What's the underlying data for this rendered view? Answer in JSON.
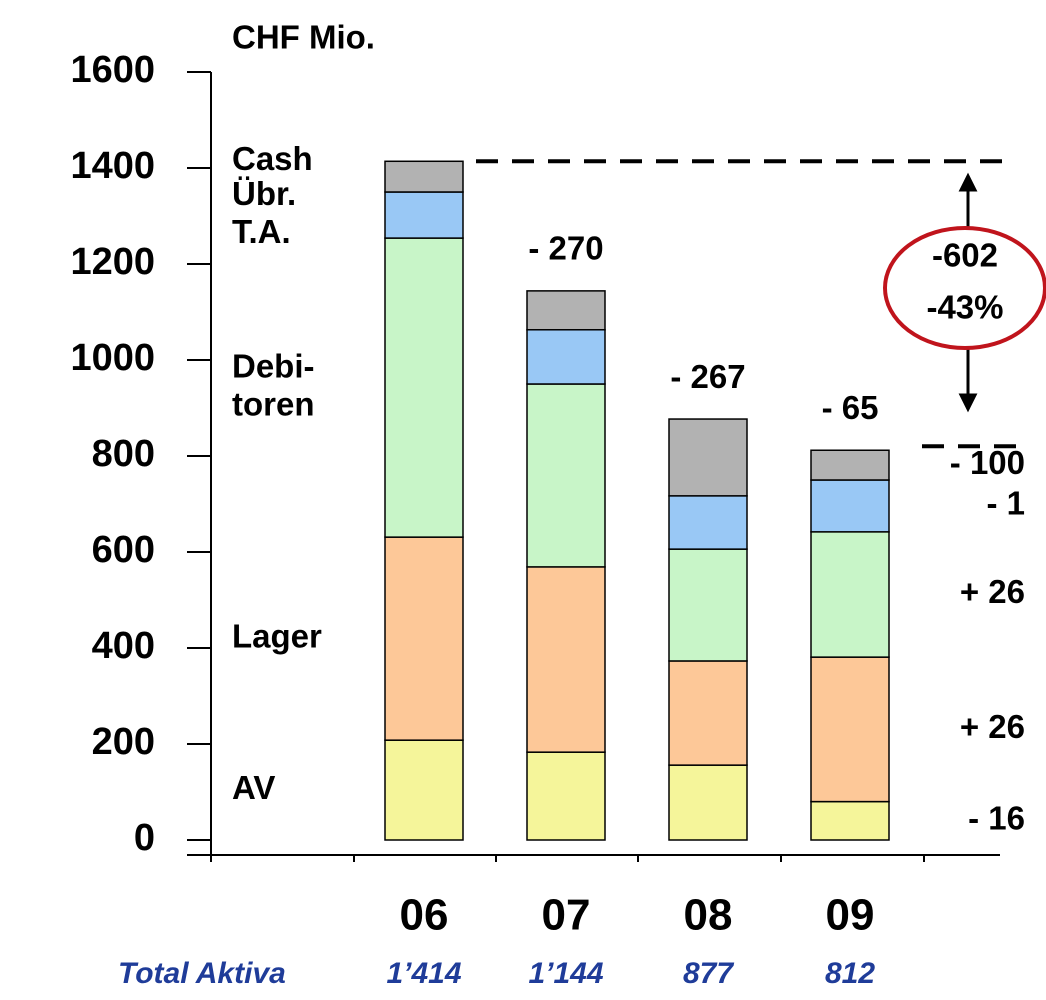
{
  "chart_data": {
    "type": "stacked_bar",
    "y_label": "CHF Mio.",
    "categories": [
      "06",
      "07",
      "08",
      "09"
    ],
    "series": [
      {
        "name": "AV",
        "color": "#f5f59a",
        "values": [
          208,
          183,
          156,
          80
        ]
      },
      {
        "name": "Lager",
        "color": "#fdc898",
        "values": [
          423,
          386,
          217,
          301
        ]
      },
      {
        "name": "Debi- toren",
        "color": "#c8f5c8",
        "values": [
          623,
          381,
          233,
          261
        ]
      },
      {
        "name": "Übr. T.A.",
        "color": "#99c8f5",
        "values": [
          96,
          113,
          111,
          108
        ]
      },
      {
        "name": "Cash",
        "color": "#b2b2b2",
        "values": [
          64,
          81,
          160,
          62
        ]
      }
    ],
    "bar_deltas": [
      null,
      "- 270",
      "- 267",
      "- 65"
    ],
    "segment_deltas": [
      "- 16",
      "+ 26",
      "+ 26",
      "- 1",
      "- 100"
    ],
    "total_change": [
      "-602",
      "-43%"
    ],
    "totals": {
      "label": "Total Aktiva",
      "values": [
        1414,
        1144,
        877,
        812
      ],
      "value_labels": [
        "1’414",
        "1’144",
        "877",
        "812"
      ]
    },
    "ylim": [
      0,
      1600
    ],
    "yticks": [
      0,
      200,
      400,
      600,
      800,
      1000,
      1200,
      1400,
      1600
    ]
  }
}
